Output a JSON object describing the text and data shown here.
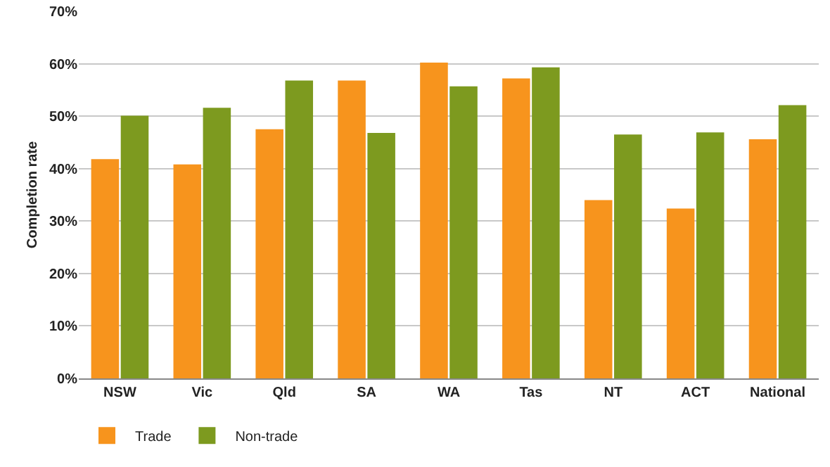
{
  "chart_data": {
    "type": "bar",
    "ylabel": "Completion rate",
    "categories": [
      "NSW",
      "Vic",
      "Qld",
      "SA",
      "WA",
      "Tas",
      "NT",
      "ACT",
      "National"
    ],
    "series": [
      {
        "name": "Trade",
        "color": "#f7941d",
        "values": [
          41.8,
          40.8,
          47.5,
          56.8,
          60.2,
          57.2,
          34.0,
          32.4,
          45.6
        ]
      },
      {
        "name": "Non-trade",
        "color": "#7d9a1f",
        "values": [
          50.1,
          51.6,
          56.8,
          46.8,
          55.7,
          59.3,
          46.5,
          46.9,
          52.1
        ]
      }
    ],
    "ylim": [
      0,
      70
    ],
    "yticks": [
      {
        "value": 0,
        "label": "0%"
      },
      {
        "value": 10,
        "label": "10%"
      },
      {
        "value": 20,
        "label": "20%"
      },
      {
        "value": 30,
        "label": "30%"
      },
      {
        "value": 40,
        "label": "40%"
      },
      {
        "value": 50,
        "label": "50%"
      },
      {
        "value": 60,
        "label": "60%"
      },
      {
        "value": 70,
        "label": "70%"
      }
    ],
    "grid": "y",
    "legend": "bottom left"
  }
}
